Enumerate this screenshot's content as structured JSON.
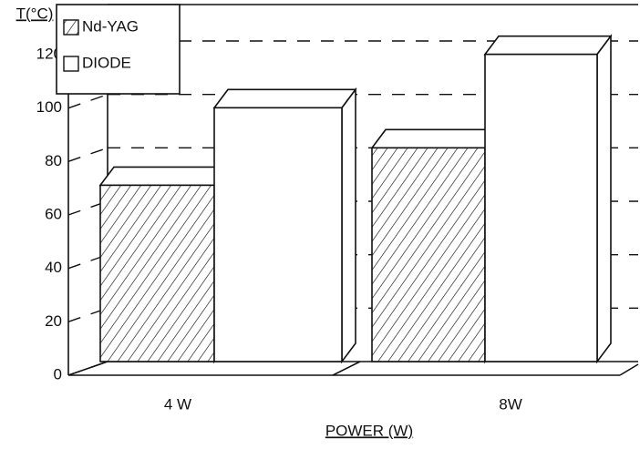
{
  "chart_data": {
    "type": "bar3d",
    "ylabel": "T(°C)",
    "xlabel": "POWER (W)",
    "categories": [
      "4 W",
      "8W"
    ],
    "series": [
      {
        "name": "Nd-YAG",
        "color": "hatch",
        "values": [
          66,
          80
        ]
      },
      {
        "name": "DIODE",
        "color": "#ffffff",
        "values": [
          95,
          115
        ]
      }
    ],
    "ylim": [
      0,
      120
    ],
    "yticks": [
      0,
      20,
      40,
      60,
      80,
      100,
      120
    ],
    "grid": true,
    "legend": "upper left"
  }
}
